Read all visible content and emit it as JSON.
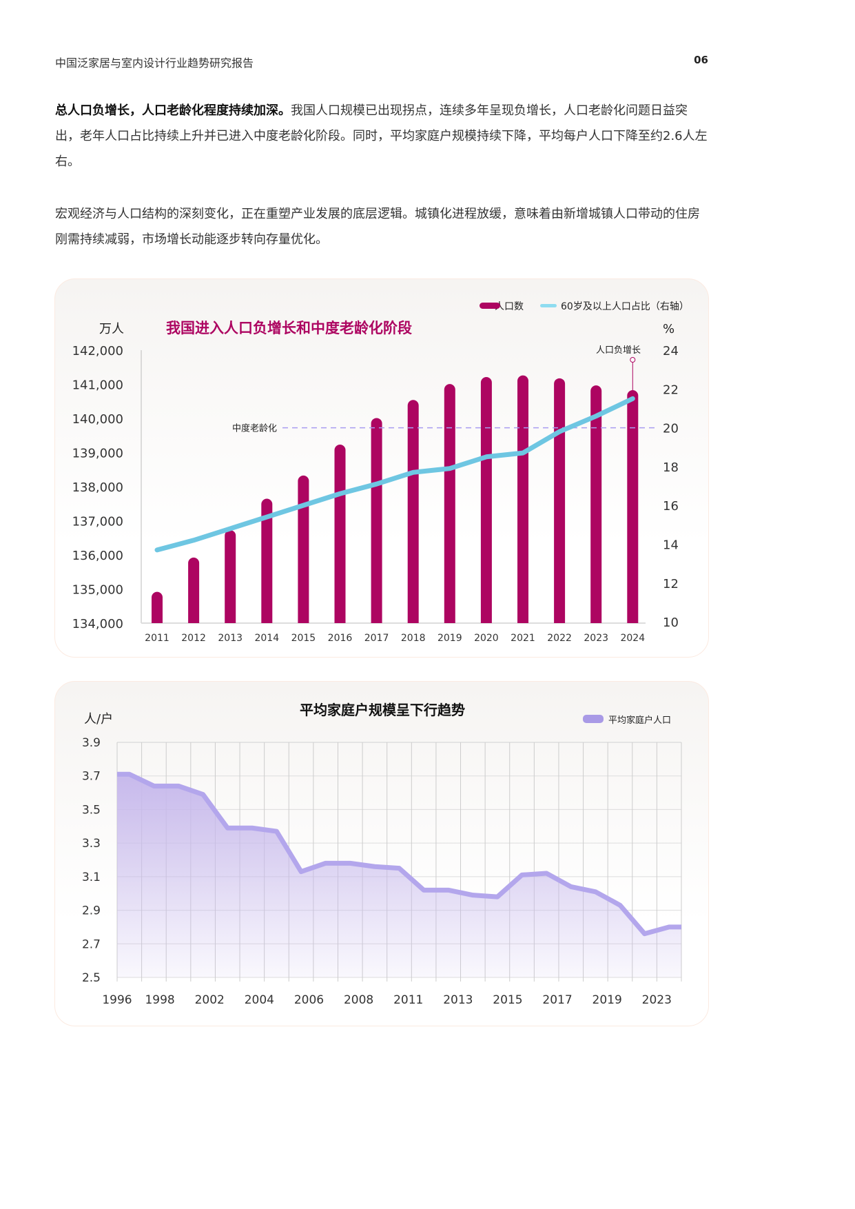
{
  "header": {
    "title": "中国泛家居与室内设计行业趋势研究报告",
    "page": "06"
  },
  "paragraphs": [
    {
      "bold": "总人口负增长，人口老龄化程度持续加深。",
      "text": "我国人口规模已出现拐点，连续多年呈现负增长，人口老龄化问题日益突出，老年人口占比持续上升并已进入中度老龄化阶段。同时，平均家庭户规模持续下降，平均每户人口下降至约2.6人左右。"
    },
    {
      "bold": "",
      "text": "宏观经济与人口结构的深刻变化，正在重塑产业发展的底层逻辑。城镇化进程放缓，意味着由新增城镇人口带动的住房刚需持续减弱，市场增长动能逐步转向存量优化。"
    }
  ],
  "chart_data": [
    {
      "type": "bar+line",
      "title": "我国进入人口负增长和中度老龄化阶段",
      "ylabel": "万人",
      "y2label": "%",
      "categories": [
        "2011",
        "2012",
        "2013",
        "2014",
        "2015",
        "2016",
        "2017",
        "2018",
        "2019",
        "2020",
        "2021",
        "2022",
        "2023",
        "2024"
      ],
      "series": [
        {
          "name": "人口数",
          "type": "bar",
          "axis": "left",
          "color": "#ad0561",
          "values": [
            134916,
            135922,
            136726,
            137646,
            138326,
            139232,
            140011,
            140541,
            141008,
            141212,
            141260,
            141175,
            140967,
            140828
          ]
        },
        {
          "name": "60岁及以上人口占比（右轴）",
          "type": "line",
          "axis": "right",
          "color": "#6ec6e2",
          "values": [
            13.7,
            14.2,
            14.8,
            15.4,
            16.0,
            16.6,
            17.1,
            17.7,
            17.9,
            18.5,
            18.7,
            19.8,
            20.6,
            21.5
          ]
        }
      ],
      "ylim": [
        134000,
        142000
      ],
      "yticks": [
        "142,000",
        "141,000",
        "140,000",
        "139,000",
        "138,000",
        "137,000",
        "136,000",
        "135,000",
        "134,000"
      ],
      "y2lim": [
        10,
        24
      ],
      "y2ticks": [
        "24",
        "22",
        "20",
        "18",
        "16",
        "14",
        "12",
        "10"
      ],
      "reference_line": {
        "label": "中度老龄化",
        "value": 20,
        "axis": "right",
        "color": "#a89cf0"
      },
      "annotation": {
        "label": "人口负增长",
        "category": "2024"
      },
      "legend": "top-right"
    },
    {
      "type": "area",
      "title": "平均家庭户规模呈下行趋势",
      "ylabel": "人/户",
      "ylim": [
        2.5,
        3.9
      ],
      "yticks": [
        "3.9",
        "3.7",
        "3.5",
        "3.3",
        "3.1",
        "2.9",
        "2.7",
        "2.5"
      ],
      "x": [
        "1996",
        "1997",
        "1998",
        "2000",
        "2002",
        "2003",
        "2004",
        "2005",
        "2006",
        "2007",
        "2008",
        "2010",
        "2011",
        "2012",
        "2013",
        "2014",
        "2015",
        "2016",
        "2017",
        "2018",
        "2019",
        "2020",
        "2023"
      ],
      "xticks": [
        "1996",
        "1998",
        "2002",
        "2004",
        "2006",
        "2008",
        "2011",
        "2013",
        "2015",
        "2017",
        "2019",
        "2023"
      ],
      "series": [
        {
          "name": "平均家庭户人口",
          "color": "#b3a6ec",
          "values": [
            3.71,
            3.64,
            3.64,
            3.59,
            3.39,
            3.39,
            3.37,
            3.13,
            3.18,
            3.18,
            3.16,
            3.15,
            3.02,
            3.02,
            2.99,
            2.98,
            3.11,
            3.12,
            3.04,
            3.01,
            2.93,
            2.76,
            2.8
          ]
        }
      ],
      "grid": true,
      "legend": "top-right"
    }
  ]
}
